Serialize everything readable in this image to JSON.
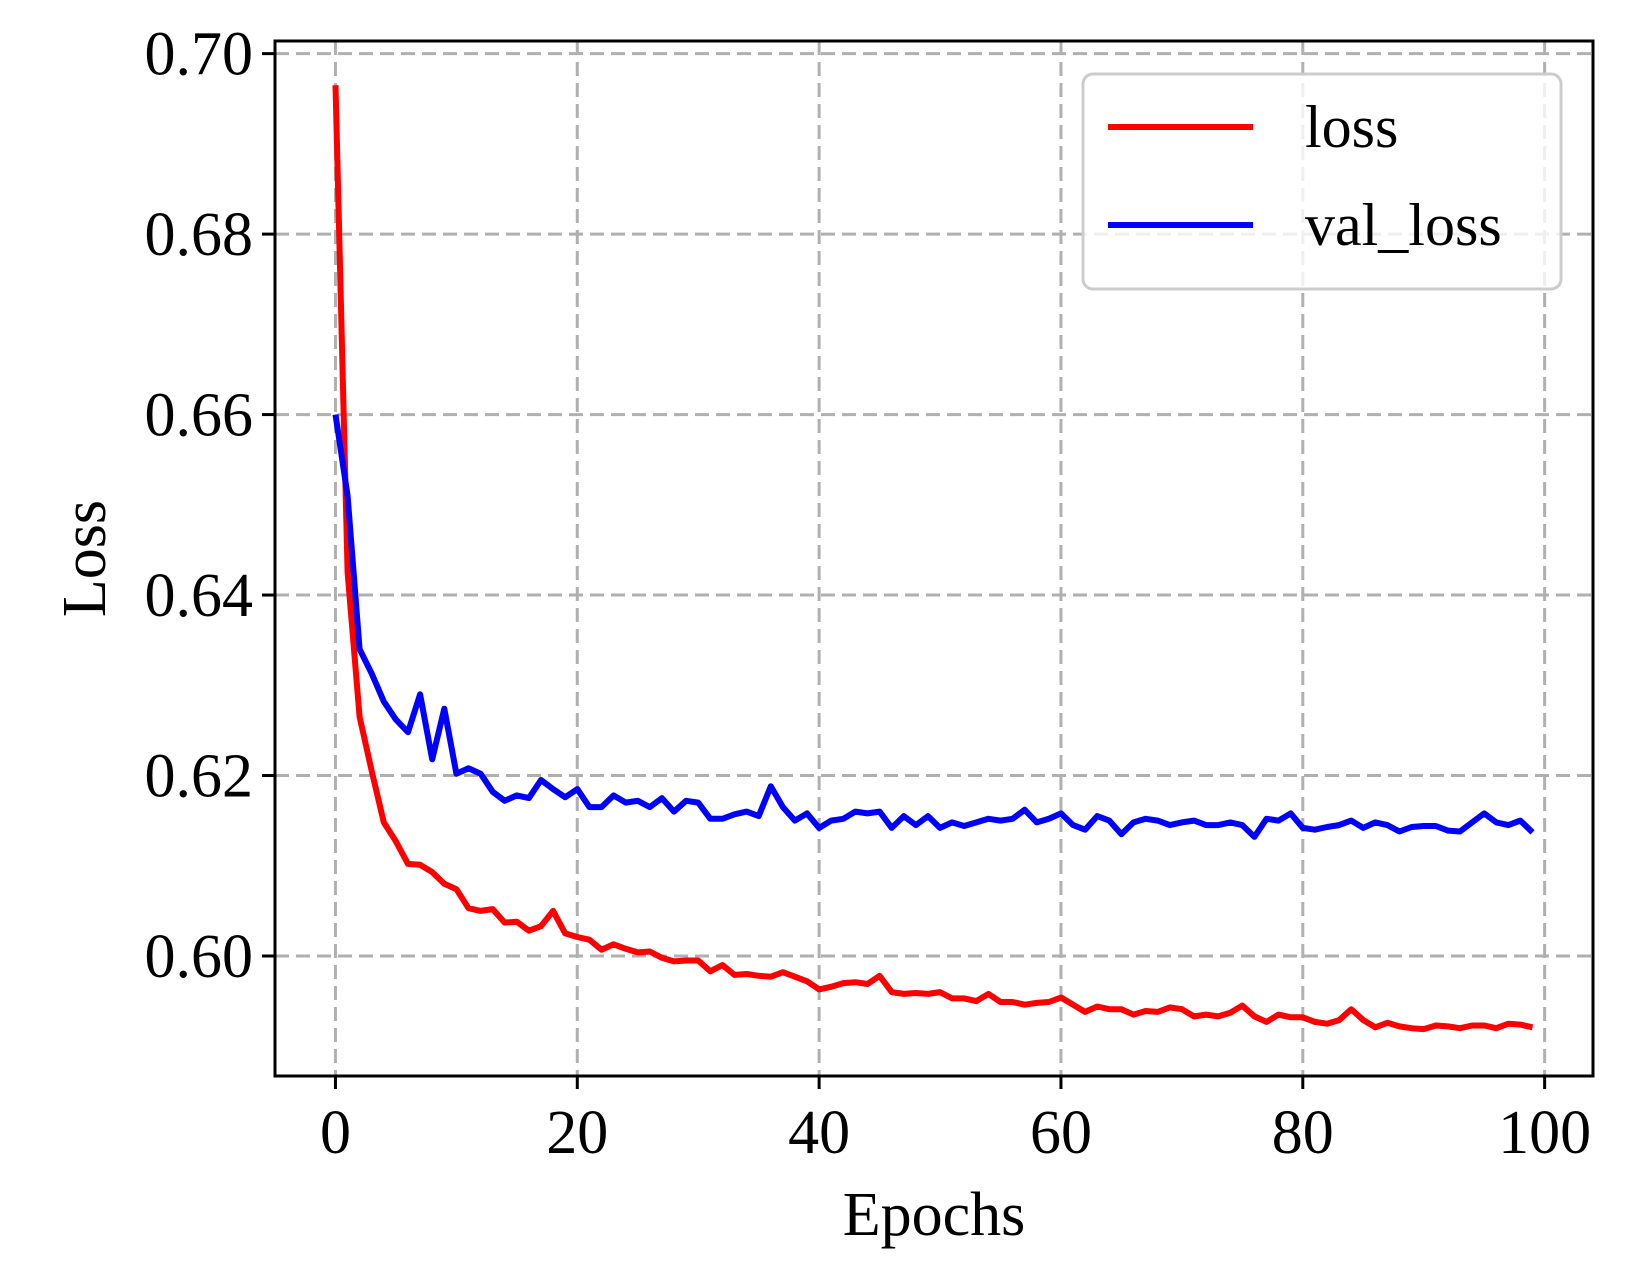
{
  "chart_data": {
    "type": "line",
    "xlabel": "Epochs",
    "ylabel": "Loss",
    "xlim": [
      -5,
      104
    ],
    "ylim": [
      0.5867,
      0.7014
    ],
    "xticks": [
      0,
      20,
      40,
      60,
      80,
      100
    ],
    "yticks": [
      0.6,
      0.62,
      0.64,
      0.66,
      0.68,
      0.7
    ],
    "xtick_labels": [
      "0",
      "20",
      "40",
      "60",
      "80",
      "100"
    ],
    "ytick_labels": [
      "0.60",
      "0.62",
      "0.64",
      "0.66",
      "0.68",
      "0.70"
    ],
    "grid": true,
    "legend_position": "top-right",
    "series": [
      {
        "name": "loss",
        "color": "#ff0000",
        "x": [
          0,
          1,
          2,
          3,
          4,
          5,
          6,
          7,
          8,
          9,
          10,
          11,
          12,
          13,
          14,
          15,
          16,
          17,
          18,
          19,
          20,
          21,
          22,
          23,
          24,
          25,
          26,
          27,
          28,
          29,
          30,
          31,
          32,
          33,
          34,
          35,
          36,
          37,
          38,
          39,
          40,
          41,
          42,
          43,
          44,
          45,
          46,
          47,
          48,
          49,
          50,
          51,
          52,
          53,
          54,
          55,
          56,
          57,
          58,
          59,
          60,
          61,
          62,
          63,
          64,
          65,
          66,
          67,
          68,
          69,
          70,
          71,
          72,
          73,
          74,
          75,
          76,
          77,
          78,
          79,
          80,
          81,
          82,
          83,
          84,
          85,
          86,
          87,
          88,
          89,
          90,
          91,
          92,
          93,
          94,
          95,
          96,
          97,
          98,
          99
        ],
        "y": [
          0.6965,
          0.6425,
          0.6265,
          0.6205,
          0.6148,
          0.6127,
          0.6102,
          0.6101,
          0.6093,
          0.608,
          0.6074,
          0.6053,
          0.605,
          0.6052,
          0.6037,
          0.6038,
          0.6028,
          0.6033,
          0.605,
          0.6025,
          0.6021,
          0.6018,
          0.6007,
          0.6013,
          0.6008,
          0.6004,
          0.6005,
          0.5998,
          0.5994,
          0.5995,
          0.5995,
          0.5983,
          0.599,
          0.5979,
          0.598,
          0.5978,
          0.5977,
          0.5982,
          0.5977,
          0.5972,
          0.5963,
          0.5966,
          0.597,
          0.5971,
          0.5969,
          0.5978,
          0.596,
          0.5958,
          0.5959,
          0.5958,
          0.596,
          0.5953,
          0.5953,
          0.595,
          0.5958,
          0.5949,
          0.5949,
          0.5946,
          0.5948,
          0.5949,
          0.5954,
          0.5946,
          0.5938,
          0.5944,
          0.5941,
          0.5941,
          0.5935,
          0.5939,
          0.5938,
          0.5943,
          0.5941,
          0.5933,
          0.5935,
          0.5933,
          0.5937,
          0.5945,
          0.5933,
          0.5927,
          0.5935,
          0.5932,
          0.5932,
          0.5927,
          0.5925,
          0.5929,
          0.5941,
          0.5929,
          0.5921,
          0.5926,
          0.5922,
          0.592,
          0.5919,
          0.5923,
          0.5922,
          0.592,
          0.5923,
          0.5923,
          0.592,
          0.5925,
          0.5924,
          0.5921
        ]
      },
      {
        "name": "val_loss",
        "color": "#0000ff",
        "x": [
          0,
          1,
          2,
          3,
          4,
          5,
          6,
          7,
          8,
          9,
          10,
          11,
          12,
          13,
          14,
          15,
          16,
          17,
          18,
          19,
          20,
          21,
          22,
          23,
          24,
          25,
          26,
          27,
          28,
          29,
          30,
          31,
          32,
          33,
          34,
          35,
          36,
          37,
          38,
          39,
          40,
          41,
          42,
          43,
          44,
          45,
          46,
          47,
          48,
          49,
          50,
          51,
          52,
          53,
          54,
          55,
          56,
          57,
          58,
          59,
          60,
          61,
          62,
          63,
          64,
          65,
          66,
          67,
          68,
          69,
          70,
          71,
          72,
          73,
          74,
          75,
          76,
          77,
          78,
          79,
          80,
          81,
          82,
          83,
          84,
          85,
          86,
          87,
          88,
          89,
          90,
          91,
          92,
          93,
          94,
          95,
          96,
          97,
          98,
          99
        ],
        "y": [
          0.66,
          0.651,
          0.634,
          0.6313,
          0.6282,
          0.6262,
          0.6248,
          0.629,
          0.6218,
          0.6274,
          0.6202,
          0.6208,
          0.6202,
          0.6182,
          0.6172,
          0.6178,
          0.6175,
          0.6195,
          0.6185,
          0.6176,
          0.6185,
          0.6165,
          0.6165,
          0.6178,
          0.617,
          0.6172,
          0.6165,
          0.6175,
          0.616,
          0.6172,
          0.617,
          0.6152,
          0.6152,
          0.6157,
          0.616,
          0.6155,
          0.6188,
          0.6165,
          0.615,
          0.6158,
          0.6142,
          0.615,
          0.6152,
          0.616,
          0.6158,
          0.616,
          0.6142,
          0.6155,
          0.6145,
          0.6155,
          0.6142,
          0.6148,
          0.6144,
          0.6148,
          0.6152,
          0.615,
          0.6152,
          0.6162,
          0.6148,
          0.6152,
          0.6158,
          0.6145,
          0.614,
          0.6155,
          0.615,
          0.6135,
          0.6148,
          0.6152,
          0.615,
          0.6145,
          0.6148,
          0.615,
          0.6145,
          0.6145,
          0.6148,
          0.6145,
          0.6132,
          0.6152,
          0.615,
          0.6158,
          0.6142,
          0.614,
          0.6143,
          0.6145,
          0.615,
          0.6142,
          0.6148,
          0.6145,
          0.6138,
          0.6143,
          0.6144,
          0.6144,
          0.6139,
          0.6138,
          0.6148,
          0.6158,
          0.6148,
          0.6145,
          0.615,
          0.6137
        ]
      }
    ]
  }
}
